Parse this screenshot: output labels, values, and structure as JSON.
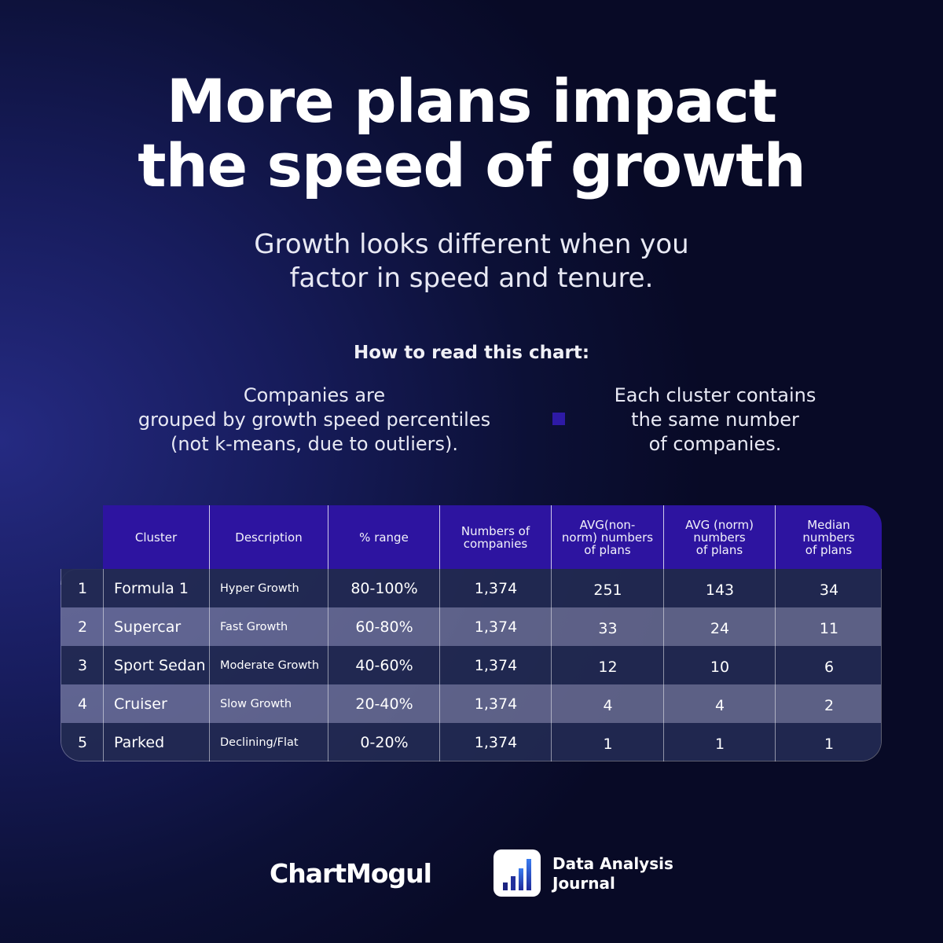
{
  "header": {
    "title_line1": "More plans impact",
    "title_line2": "the speed of growth",
    "subtitle_line1": "Growth looks different when you",
    "subtitle_line2": "factor in speed and tenure.",
    "how_to_read": "How to read this chart:"
  },
  "notes": {
    "left": [
      "Companies are",
      "grouped by growth speed percentiles",
      "(not k-means, due to outliers)."
    ],
    "right": [
      "Each cluster contains",
      "the same number",
      "of companies."
    ]
  },
  "colors": {
    "header_band": "#2d14a0",
    "row_dark": "#232a52",
    "row_light": "#7478a0",
    "bullet": "#2e1aa6"
  },
  "chart_data": {
    "type": "table",
    "columns": [
      "",
      "Cluster",
      "Description",
      "% range",
      "Numbers of companies",
      "AVG(non-norm) numbers of plans",
      "AVG (norm) numbers of plans",
      "Median numbers of plans"
    ],
    "columns_display": [
      [
        ""
      ],
      [
        "Cluster"
      ],
      [
        "Description"
      ],
      [
        "% range"
      ],
      [
        "Numbers of",
        "companies"
      ],
      [
        "AVG(non-",
        "norm) numbers",
        "of plans"
      ],
      [
        "AVG (norm)",
        "numbers",
        "of plans"
      ],
      [
        "Median",
        "numbers",
        "of plans"
      ]
    ],
    "rows": [
      [
        "1",
        "Formula 1",
        "Hyper Growth",
        "80-100%",
        "1,374",
        "251",
        "143",
        "34"
      ],
      [
        "2",
        "Supercar",
        "Fast Growth",
        "60-80%",
        "1,374",
        "33",
        "24",
        "11"
      ],
      [
        "3",
        "Sport Sedan",
        "Moderate Growth",
        "40-60%",
        "1,374",
        "12",
        "10",
        "6"
      ],
      [
        "4",
        "Cruiser",
        "Slow Growth",
        "20-40%",
        "1,374",
        "4",
        "4",
        "2"
      ],
      [
        "5",
        "Parked",
        "Declining/Flat",
        "0-20%",
        "1,374",
        "1",
        "1",
        "1"
      ]
    ]
  },
  "footer": {
    "brand_left": "ChartMogul",
    "brand_right_line1": "Data Analysis",
    "brand_right_line2": "Journal",
    "logo_icon": "bar-chart-icon"
  }
}
